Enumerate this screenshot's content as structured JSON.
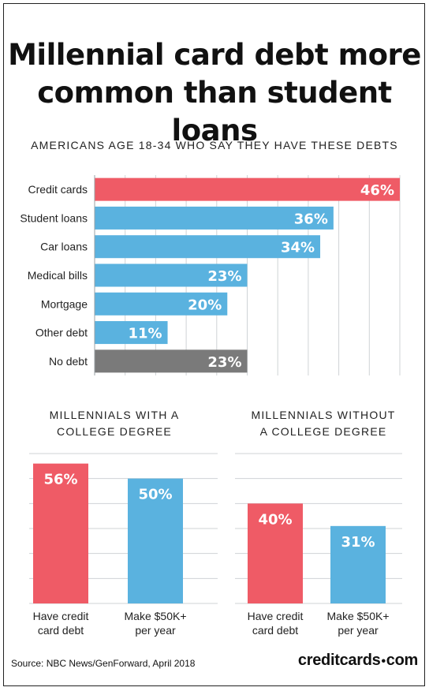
{
  "title_line1": "Millennial card debt more",
  "title_line2": "common than student loans",
  "footer": {
    "source": "Source: NBC News/GenForward, April 2018",
    "logo_left": "creditcards",
    "logo_dot": "•",
    "logo_right": "com"
  },
  "colors": {
    "red": "#ef5b66",
    "blue": "#5ab2df",
    "gray": "#7a7a7a",
    "grid": "#cfd3d6",
    "label": "#ffffff"
  },
  "chart_data": [
    {
      "type": "bar",
      "orientation": "horizontal",
      "title": "AMERICANS AGE 18-34 WHO SAY THEY HAVE THESE DEBTS",
      "categories": [
        "Credit cards",
        "Student loans",
        "Car loans",
        "Medical bills",
        "Mortgage",
        "Other debt",
        "No debt"
      ],
      "values": [
        46,
        36,
        34,
        23,
        20,
        11,
        23
      ],
      "value_labels": [
        "46%",
        "36%",
        "34%",
        "23%",
        "20%",
        "11%",
        "23%"
      ],
      "bar_colors": [
        "#ef5b66",
        "#5ab2df",
        "#5ab2df",
        "#5ab2df",
        "#5ab2df",
        "#5ab2df",
        "#7a7a7a"
      ],
      "xlim": [
        0,
        46
      ],
      "grid": true
    },
    {
      "type": "bar",
      "title_line1": "MILLENNIALS WITH A",
      "title_line2": "COLLEGE DEGREE",
      "categories": [
        {
          "line1": "Have credit",
          "line2": "card debt"
        },
        {
          "line1": "Make $50K+",
          "line2": "per year"
        }
      ],
      "values": [
        56,
        50
      ],
      "value_labels": [
        "56%",
        "50%"
      ],
      "bar_colors": [
        "#ef5b66",
        "#5ab2df"
      ],
      "ylim": [
        0,
        60
      ],
      "grid": true
    },
    {
      "type": "bar",
      "title_line1": "MILLENNIALS WITHOUT",
      "title_line2": "A COLLEGE DEGREE",
      "categories": [
        {
          "line1": "Have credit",
          "line2": "card debt"
        },
        {
          "line1": "Make $50K+",
          "line2": "per year"
        }
      ],
      "values": [
        40,
        31
      ],
      "value_labels": [
        "40%",
        "31%"
      ],
      "bar_colors": [
        "#ef5b66",
        "#5ab2df"
      ],
      "ylim": [
        0,
        60
      ],
      "grid": true
    }
  ]
}
